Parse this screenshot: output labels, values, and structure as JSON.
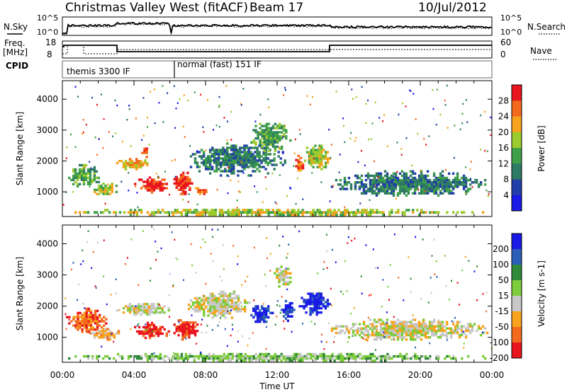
{
  "header": {
    "title": "Christmas Valley West (fitACF)",
    "beam": "Beam 17",
    "date": "10/Jul/2012"
  },
  "sky_panel": {
    "left_label": "N.Sky",
    "right_label": "N.Search",
    "left_ticks": [
      "10^5",
      "10^0"
    ],
    "right_ticks": [
      "10^5",
      "10^0"
    ]
  },
  "freq_panel": {
    "left_label_1": "Freq.",
    "left_label_2": "[MHz]",
    "right_label": "Nave",
    "left_ticks": [
      "18",
      "8"
    ],
    "right_ticks": [
      "60",
      "0"
    ]
  },
  "cpid": {
    "label": "CPID",
    "modes": [
      {
        "text": "themis 3300 IF",
        "start": 0.0,
        "end": 6.1
      },
      {
        "text": "normal (fast) 151 IF",
        "start": 6.1,
        "end": 24.0
      }
    ]
  },
  "chart_data": [
    {
      "type": "heatmap",
      "name": "power",
      "ylabel": "Slant Range [km]",
      "xlabel": "Time UT",
      "ylim": [
        200,
        4600
      ],
      "xlim": [
        0,
        24
      ],
      "yticks": [
        1000,
        2000,
        3000,
        4000
      ],
      "xtick_labels": [
        "00:00",
        "04:00",
        "08:00",
        "12:00",
        "16:00",
        "20:00",
        "00:00"
      ],
      "colorbar": {
        "label": "Power [dB]",
        "ticks": [
          "28",
          "24",
          "20",
          "16",
          "12",
          "8",
          "4"
        ],
        "colors": [
          "#e8141e",
          "#f36a1e",
          "#f7a31e",
          "#9ccb2e",
          "#3fa04a",
          "#2e7a63",
          "#223ea8",
          "#1a1ae6"
        ]
      },
      "regions": [
        {
          "t0": 0.2,
          "t1": 2.2,
          "r0": 1150,
          "r1": 1900,
          "level": 3
        },
        {
          "t0": 1.5,
          "t1": 3.2,
          "r0": 900,
          "r1": 1300,
          "level": 4
        },
        {
          "t0": 3.0,
          "t1": 4.8,
          "r0": 1700,
          "r1": 2100,
          "level": 5
        },
        {
          "t0": 4.0,
          "t1": 6.0,
          "r0": 950,
          "r1": 1500,
          "level": 7
        },
        {
          "t0": 4.4,
          "t1": 4.9,
          "r0": 2100,
          "r1": 2500,
          "level": 6
        },
        {
          "t0": 6.2,
          "t1": 7.3,
          "r0": 900,
          "r1": 1650,
          "level": 7
        },
        {
          "t0": 7.3,
          "t1": 8.2,
          "r0": 900,
          "r1": 1150,
          "level": 6
        },
        {
          "t0": 7.0,
          "t1": 12.5,
          "r0": 1500,
          "r1": 2600,
          "level": 2
        },
        {
          "t0": 10.5,
          "t1": 12.8,
          "r0": 2300,
          "r1": 3300,
          "level": 3
        },
        {
          "t0": 13.0,
          "t1": 13.5,
          "r0": 1600,
          "r1": 2200,
          "level": 6
        },
        {
          "t0": 13.5,
          "t1": 15.0,
          "r0": 1700,
          "r1": 2600,
          "level": 4
        },
        {
          "t0": 15.0,
          "t1": 23.8,
          "r0": 850,
          "r1": 1700,
          "level": 2
        },
        {
          "t0": 0.2,
          "t1": 23.8,
          "r0": 220,
          "r1": 450,
          "level": 4
        }
      ]
    },
    {
      "type": "heatmap",
      "name": "velocity",
      "ylabel": "Slant Range [km]",
      "xlabel": "Time UT",
      "ylim": [
        200,
        4600
      ],
      "xlim": [
        0,
        24
      ],
      "yticks": [
        1000,
        2000,
        3000,
        4000
      ],
      "xtick_labels": [
        "00:00",
        "04:00",
        "08:00",
        "12:00",
        "16:00",
        "20:00",
        "00:00"
      ],
      "colorbar": {
        "label": "Velocity [m s-1]",
        "ticks": [
          "200",
          "100",
          "50",
          "15",
          "-15",
          "-50",
          "-100",
          "-200"
        ],
        "colors": [
          "#1a1ae6",
          "#2b5fb8",
          "#2f8a3a",
          "#7dcc3c",
          "#c8c8c8",
          "#f7a31e",
          "#f36a1e",
          "#e8141e"
        ]
      },
      "regions": [
        {
          "t0": 0.2,
          "t1": 2.5,
          "r0": 1150,
          "r1": 1950,
          "level": 6
        },
        {
          "t0": 1.5,
          "t1": 3.2,
          "r0": 900,
          "r1": 1300,
          "level": 5
        },
        {
          "t0": 3.0,
          "t1": 6.0,
          "r0": 1700,
          "r1": 2100,
          "level": 4
        },
        {
          "t0": 4.0,
          "t1": 6.0,
          "r0": 950,
          "r1": 1500,
          "level": 7
        },
        {
          "t0": 6.2,
          "t1": 7.6,
          "r0": 900,
          "r1": 1650,
          "level": 7
        },
        {
          "t0": 7.0,
          "t1": 10.5,
          "r0": 1600,
          "r1": 2500,
          "level": 4
        },
        {
          "t0": 10.5,
          "t1": 11.8,
          "r0": 1400,
          "r1": 2100,
          "level": 0
        },
        {
          "t0": 12.2,
          "t1": 13.0,
          "r0": 1500,
          "r1": 2200,
          "level": 0
        },
        {
          "t0": 13.2,
          "t1": 15.0,
          "r0": 1700,
          "r1": 2500,
          "level": 0
        },
        {
          "t0": 11.8,
          "t1": 12.8,
          "r0": 2600,
          "r1": 3300,
          "level": 4
        },
        {
          "t0": 15.0,
          "t1": 23.8,
          "r0": 900,
          "r1": 1600,
          "level": 4
        },
        {
          "t0": 0.2,
          "t1": 23.8,
          "r0": 220,
          "r1": 500,
          "level": 3
        }
      ]
    }
  ]
}
